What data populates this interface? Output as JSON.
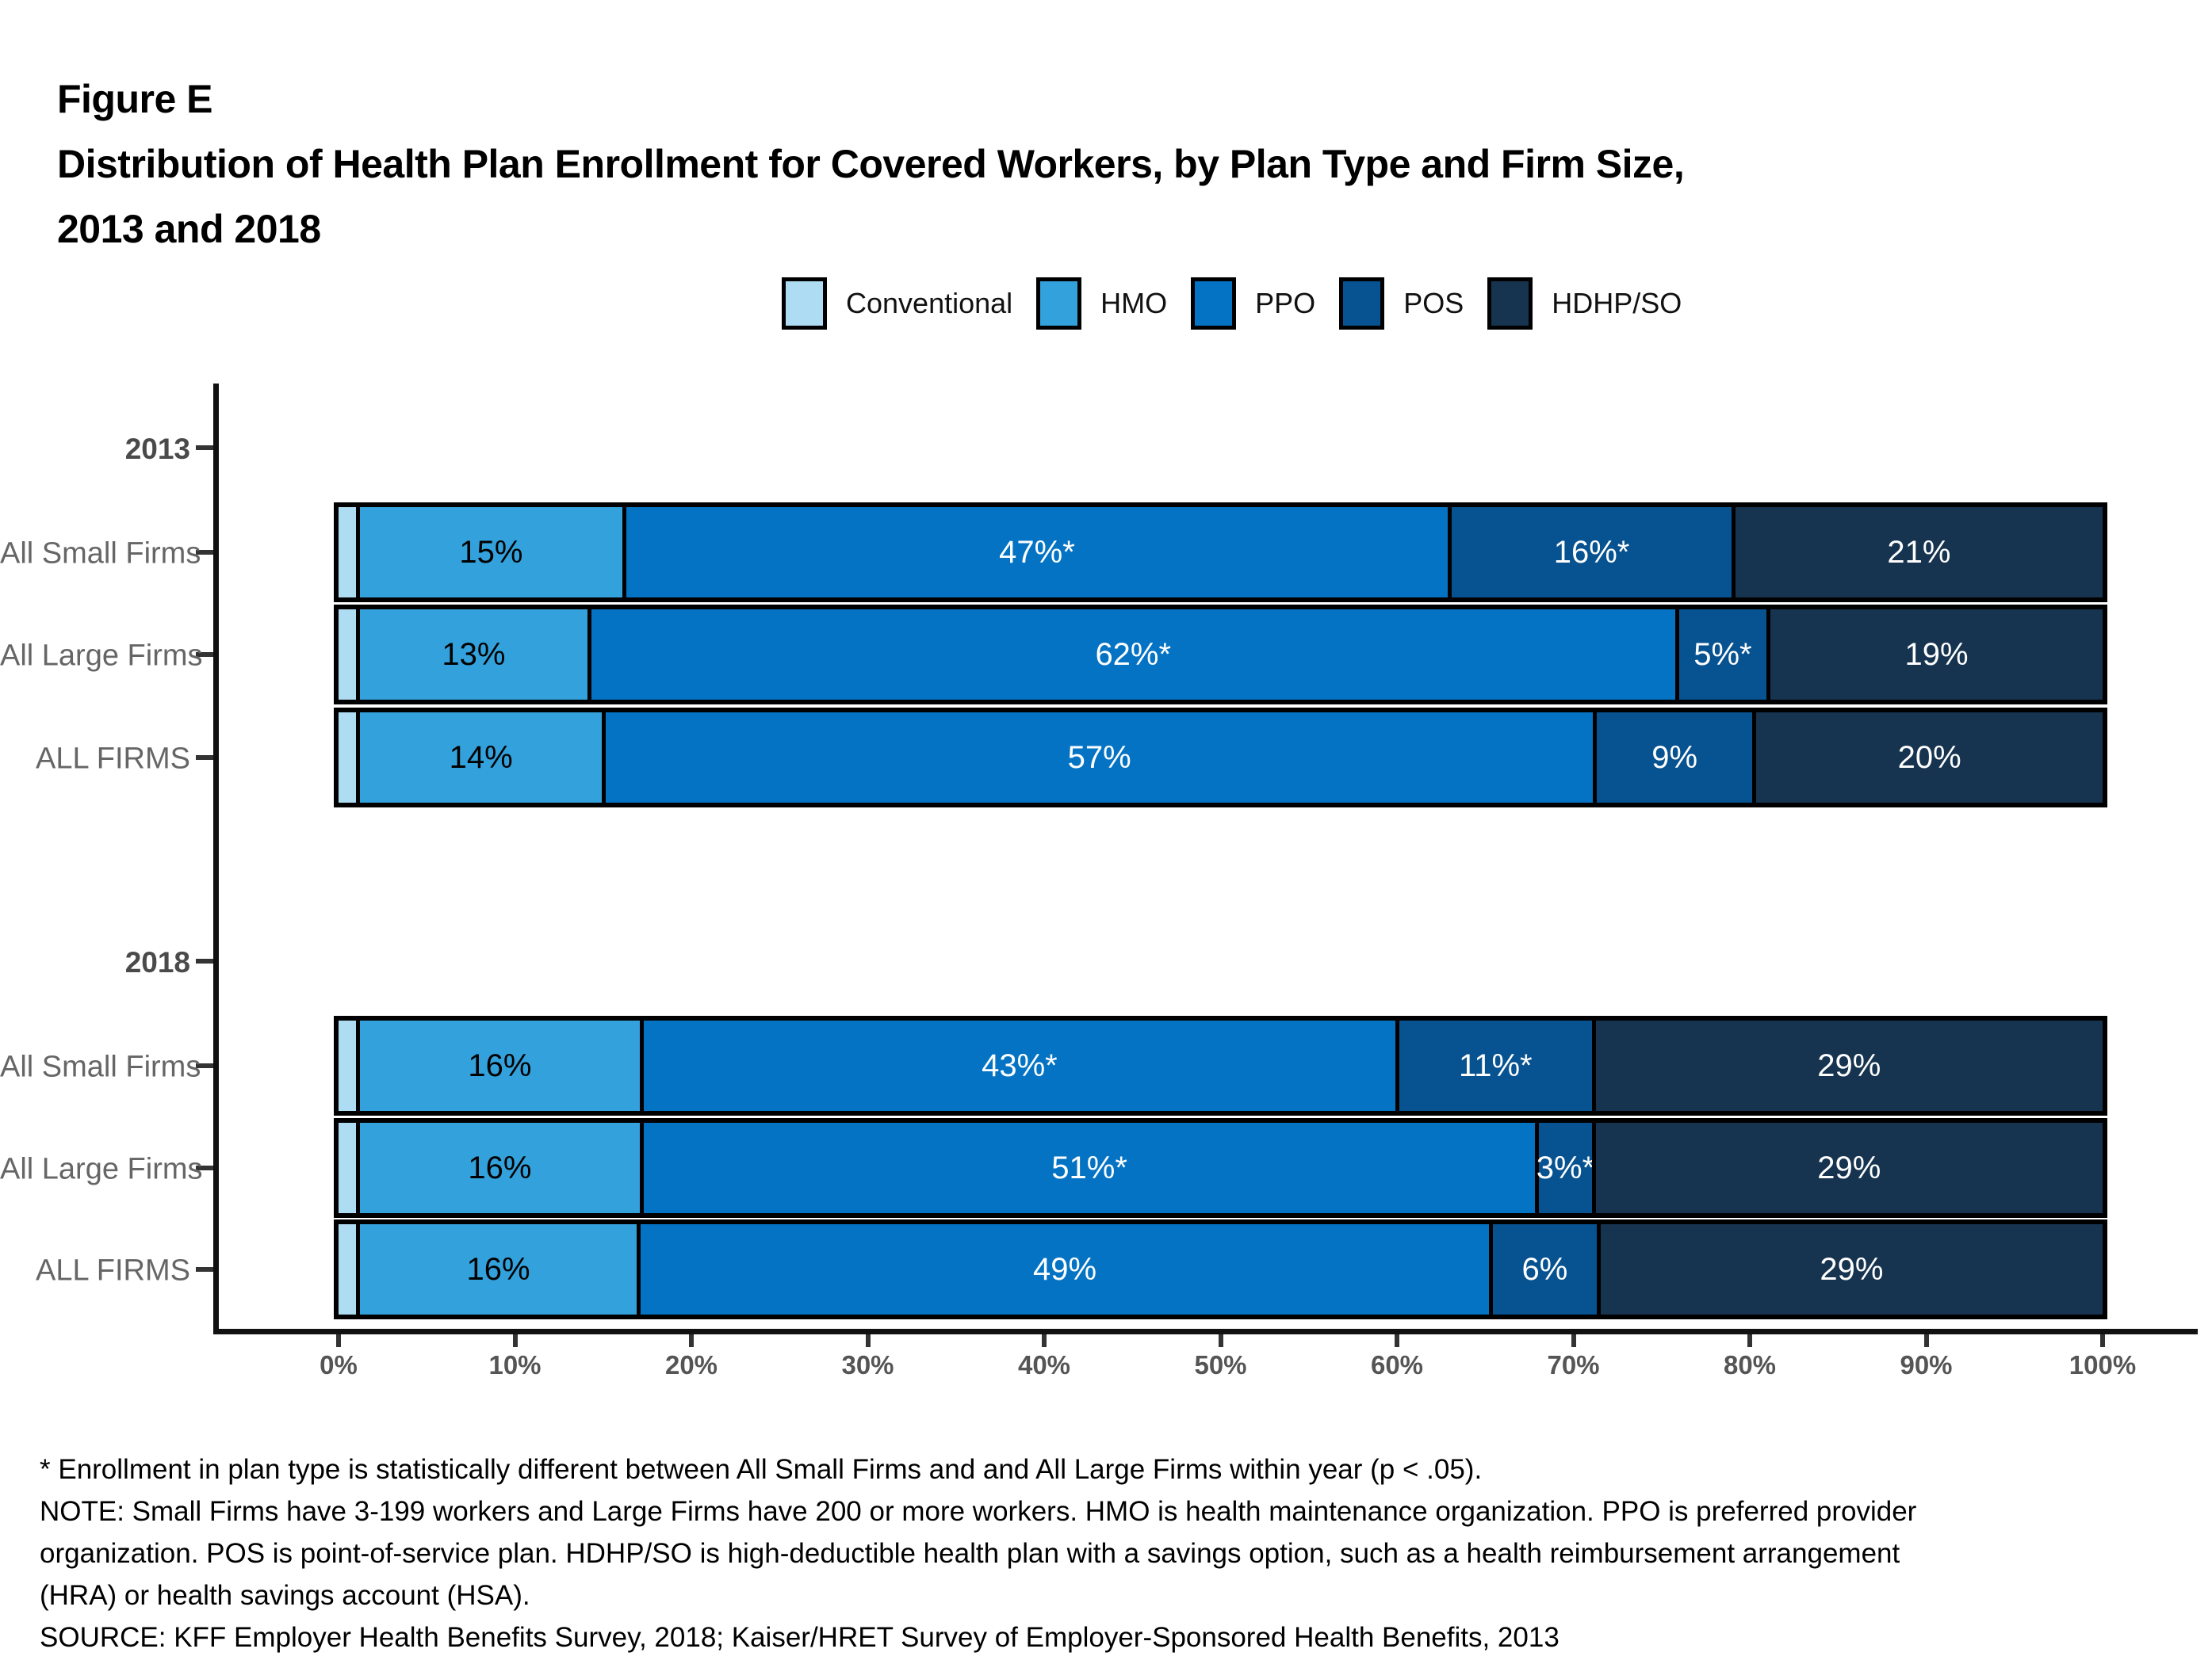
{
  "title": {
    "figure_label": "Figure E",
    "main": "Distribution of Health Plan Enrollment for Covered Workers, by Plan Type and Firm Size,",
    "years": "2013 and 2018"
  },
  "colors": {
    "conventional": "#AEDCF2",
    "hmo": "#33A1DC",
    "ppo": "#0473C4",
    "pos": "#075290",
    "hdhp_so": "#16334F",
    "axis": "#111111",
    "tick_label": "#555555",
    "row_label": "#666666"
  },
  "legend": {
    "items": [
      {
        "id": "conventional",
        "label": "Conventional"
      },
      {
        "id": "hmo",
        "label": "HMO"
      },
      {
        "id": "ppo",
        "label": "PPO"
      },
      {
        "id": "pos",
        "label": "POS"
      },
      {
        "id": "hdhp_so",
        "label": "HDHP/SO"
      }
    ]
  },
  "chart_data": {
    "type": "bar",
    "subtype": "horizontal-stacked",
    "title": "Distribution of Health Plan Enrollment for Covered Workers, by Plan Type and Firm Size, 2013 and 2018",
    "series_names": [
      "Conventional",
      "HMO",
      "PPO",
      "POS",
      "HDHP/SO"
    ],
    "x_axis": {
      "range_pct": [
        0,
        100
      ],
      "ticks": [
        "0%",
        "10%",
        "20%",
        "30%",
        "40%",
        "50%",
        "60%",
        "70%",
        "80%",
        "90%",
        "100%"
      ]
    },
    "groups": [
      {
        "year": "2013",
        "rows": [
          {
            "label": "All Small Firms",
            "segments": [
              {
                "plan": "Conventional",
                "value": 1,
                "label": ""
              },
              {
                "plan": "HMO",
                "value": 15,
                "label": "15%"
              },
              {
                "plan": "PPO",
                "value": 47,
                "label": "47%*"
              },
              {
                "plan": "POS",
                "value": 16,
                "label": "16%*"
              },
              {
                "plan": "HDHP/SO",
                "value": 21,
                "label": "21%"
              }
            ]
          },
          {
            "label": "All Large Firms",
            "segments": [
              {
                "plan": "Conventional",
                "value": 1,
                "label": ""
              },
              {
                "plan": "HMO",
                "value": 13,
                "label": "13%"
              },
              {
                "plan": "PPO",
                "value": 62,
                "label": "62%*"
              },
              {
                "plan": "POS",
                "value": 5,
                "label": "5%*"
              },
              {
                "plan": "HDHP/SO",
                "value": 19,
                "label": "19%"
              }
            ]
          },
          {
            "label": "ALL FIRMS",
            "segments": [
              {
                "plan": "Conventional",
                "value": 1,
                "label": ""
              },
              {
                "plan": "HMO",
                "value": 14,
                "label": "14%"
              },
              {
                "plan": "PPO",
                "value": 57,
                "label": "57%"
              },
              {
                "plan": "POS",
                "value": 9,
                "label": "9%"
              },
              {
                "plan": "HDHP/SO",
                "value": 20,
                "label": "20%"
              }
            ]
          }
        ]
      },
      {
        "year": "2018",
        "rows": [
          {
            "label": "All Small Firms",
            "segments": [
              {
                "plan": "Conventional",
                "value": 1,
                "label": ""
              },
              {
                "plan": "HMO",
                "value": 16,
                "label": "16%"
              },
              {
                "plan": "PPO",
                "value": 43,
                "label": "43%*"
              },
              {
                "plan": "POS",
                "value": 11,
                "label": "11%*"
              },
              {
                "plan": "HDHP/SO",
                "value": 29,
                "label": "29%"
              }
            ]
          },
          {
            "label": "All Large Firms",
            "segments": [
              {
                "plan": "Conventional",
                "value": 1,
                "label": ""
              },
              {
                "plan": "HMO",
                "value": 16,
                "label": "16%"
              },
              {
                "plan": "PPO",
                "value": 51,
                "label": "51%*"
              },
              {
                "plan": "POS",
                "value": 3,
                "label": "3%*"
              },
              {
                "plan": "HDHP/SO",
                "value": 29,
                "label": "29%"
              }
            ]
          },
          {
            "label": "ALL FIRMS",
            "segments": [
              {
                "plan": "Conventional",
                "value": 1,
                "label": ""
              },
              {
                "plan": "HMO",
                "value": 16,
                "label": "16%"
              },
              {
                "plan": "PPO",
                "value": 49,
                "label": "49%"
              },
              {
                "plan": "POS",
                "value": 6,
                "label": "6%"
              },
              {
                "plan": "HDHP/SO",
                "value": 29,
                "label": "29%"
              }
            ]
          }
        ]
      }
    ]
  },
  "footnotes": {
    "lines": [
      "* Enrollment in plan type is statistically different between All Small Firms and and All Large Firms within year (p < .05).",
      "NOTE: Small Firms have 3-199 workers and Large Firms have 200 or more workers. HMO is health maintenance organization. PPO is preferred provider",
      "organization. POS is point-of-service plan. HDHP/SO is high-deductible health plan with a savings option, such as a health reimbursement arrangement",
      "(HRA) or health savings account (HSA).",
      "SOURCE: KFF Employer Health Benefits Survey, 2018; Kaiser/HRET Survey of Employer-Sponsored Health Benefits, 2013"
    ]
  }
}
